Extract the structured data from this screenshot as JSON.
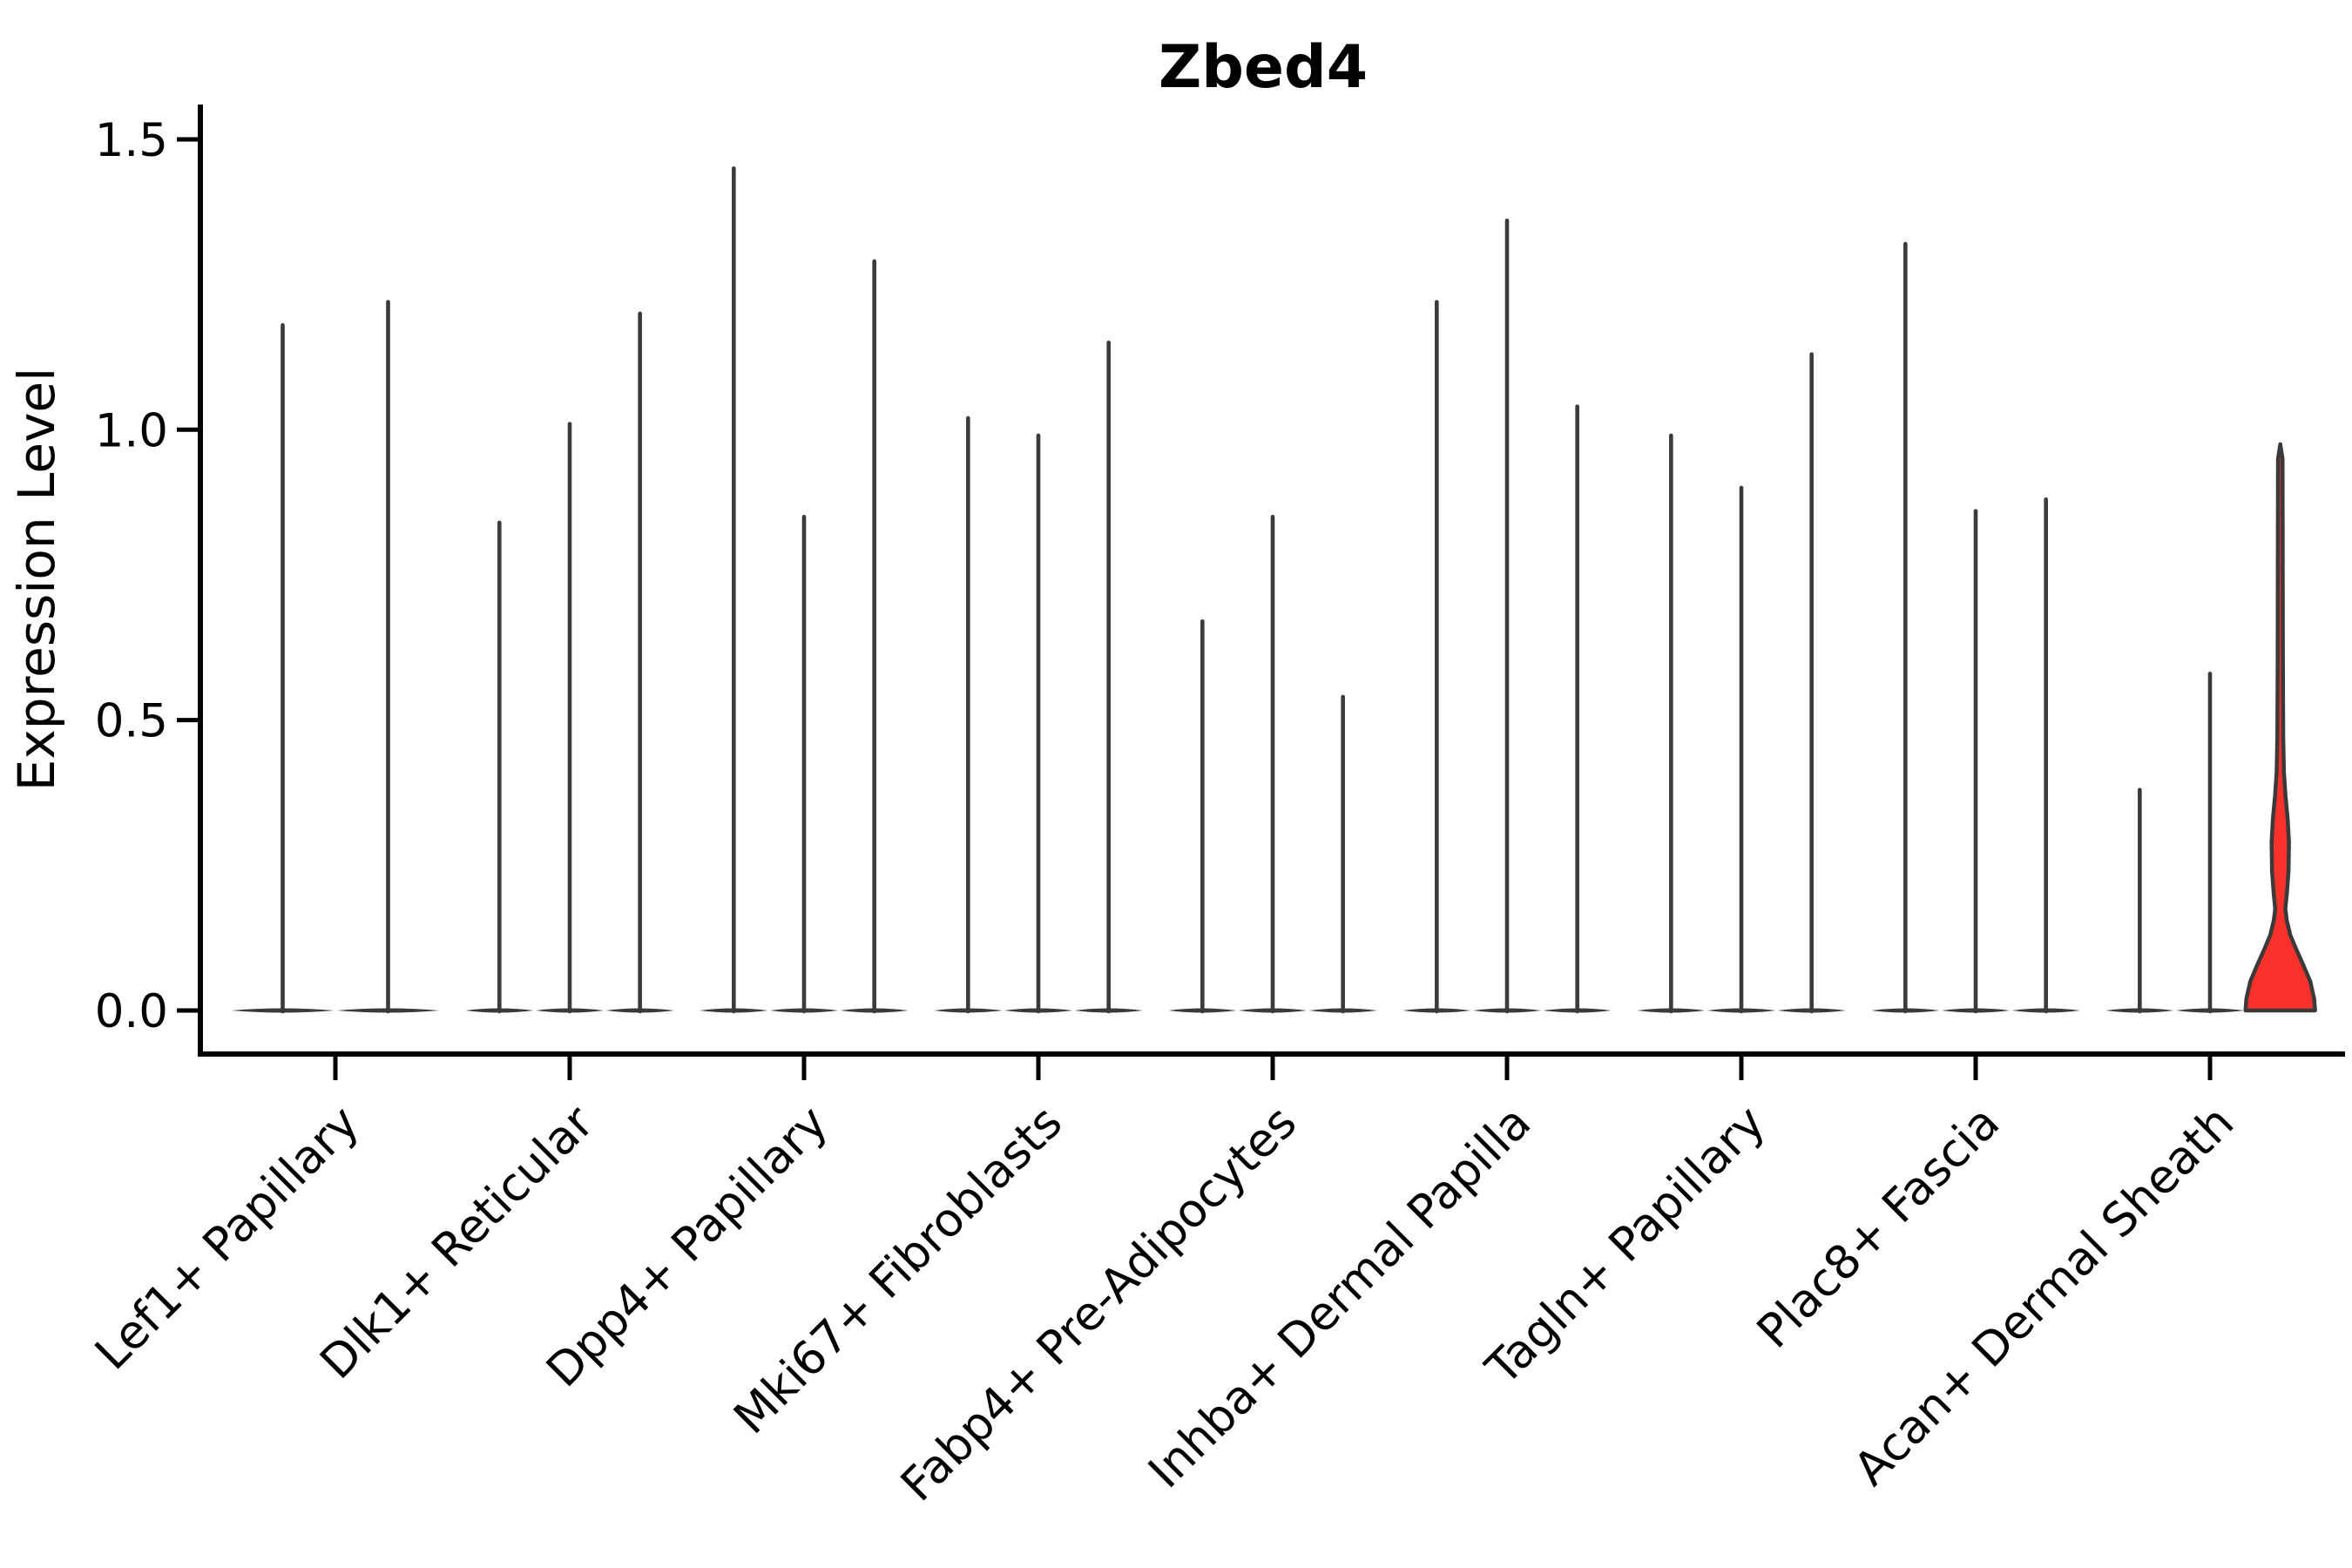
{
  "chart_data": {
    "type": "violin",
    "title": "Zbed4",
    "ylabel": "Expression Level",
    "xlabel": "",
    "ylim": [
      0,
      1.5
    ],
    "yticks": [
      {
        "value": 0.0,
        "label": "0.0"
      },
      {
        "value": 0.5,
        "label": "0.5"
      },
      {
        "value": 1.0,
        "label": "1.0"
      },
      {
        "value": 1.5,
        "label": "1.5"
      }
    ],
    "categories": [
      "Lef1+ Papillary",
      "Dlk1+ Reticular",
      "Dpp4+ Papillary",
      "Mki67+ Fibroblasts",
      "Fabp4+ Pre-Adipocytes",
      "Inhba+ Dermal Papilla",
      "Tagln+ Papillary",
      "Plac8+ Fascia",
      "Acan+ Dermal Sheath"
    ],
    "legend": "none",
    "grid": false,
    "groups": [
      {
        "label": "Lef1+ Papillary",
        "violins": [
          {
            "kind": "spike",
            "max": 1.18
          },
          {
            "kind": "spike",
            "max": 1.22
          }
        ]
      },
      {
        "label": "Dlk1+ Reticular",
        "violins": [
          {
            "kind": "spike",
            "max": 0.84
          },
          {
            "kind": "spike",
            "max": 1.01
          },
          {
            "kind": "spike",
            "max": 1.2
          }
        ]
      },
      {
        "label": "Dpp4+ Papillary",
        "violins": [
          {
            "kind": "spike",
            "max": 1.45
          },
          {
            "kind": "spike",
            "max": 0.85
          },
          {
            "kind": "spike",
            "max": 1.29
          }
        ]
      },
      {
        "label": "Mki67+ Fibroblasts",
        "violins": [
          {
            "kind": "spike",
            "max": 1.02
          },
          {
            "kind": "spike",
            "max": 0.99
          },
          {
            "kind": "spike",
            "max": 1.15
          }
        ]
      },
      {
        "label": "Fabp4+ Pre-Adipocytes",
        "violins": [
          {
            "kind": "spike",
            "max": 0.67
          },
          {
            "kind": "spike",
            "max": 0.85
          },
          {
            "kind": "spike",
            "max": 0.54
          }
        ]
      },
      {
        "label": "Inhba+ Dermal Papilla",
        "violins": [
          {
            "kind": "spike",
            "max": 1.22
          },
          {
            "kind": "spike",
            "max": 1.36
          },
          {
            "kind": "spike",
            "max": 1.04
          }
        ]
      },
      {
        "label": "Tagln+ Papillary",
        "violins": [
          {
            "kind": "spike",
            "max": 0.99
          },
          {
            "kind": "spike",
            "max": 0.9
          },
          {
            "kind": "spike",
            "max": 1.13
          }
        ]
      },
      {
        "label": "Plac8+ Fascia",
        "violins": [
          {
            "kind": "spike",
            "max": 1.32
          },
          {
            "kind": "spike",
            "max": 0.86
          },
          {
            "kind": "spike",
            "max": 0.88
          }
        ]
      },
      {
        "label": "Acan+ Dermal Sheath",
        "violins": [
          {
            "kind": "spike",
            "max": 0.38
          },
          {
            "kind": "spike",
            "max": 0.58
          },
          {
            "kind": "violin",
            "max": 0.975,
            "highlight": true,
            "profile": [
              [
                0.0,
                1.0
              ],
              [
                0.02,
                0.975
              ],
              [
                0.05,
                0.8625
              ],
              [
                0.08,
                0.65
              ],
              [
                0.105,
                0.4625
              ],
              [
                0.13,
                0.2875
              ],
              [
                0.155,
                0.1875
              ],
              [
                0.175,
                0.145
              ],
              [
                0.2,
                0.1875
              ],
              [
                0.24,
                0.2375
              ],
              [
                0.29,
                0.25
              ],
              [
                0.33,
                0.2125
              ],
              [
                0.37,
                0.15
              ],
              [
                0.41,
                0.105
              ],
              [
                0.47,
                0.085
              ],
              [
                0.6,
                0.075
              ],
              [
                0.8,
                0.07
              ],
              [
                0.95,
                0.065
              ],
              [
                0.975,
                0.0
              ]
            ]
          }
        ]
      }
    ],
    "colors": {
      "stem": "#3a3a3a",
      "violin_outline": "#3a3a3a",
      "highlight_fill": "#f8322a",
      "axis": "#000000",
      "background": "#ffffff"
    }
  }
}
